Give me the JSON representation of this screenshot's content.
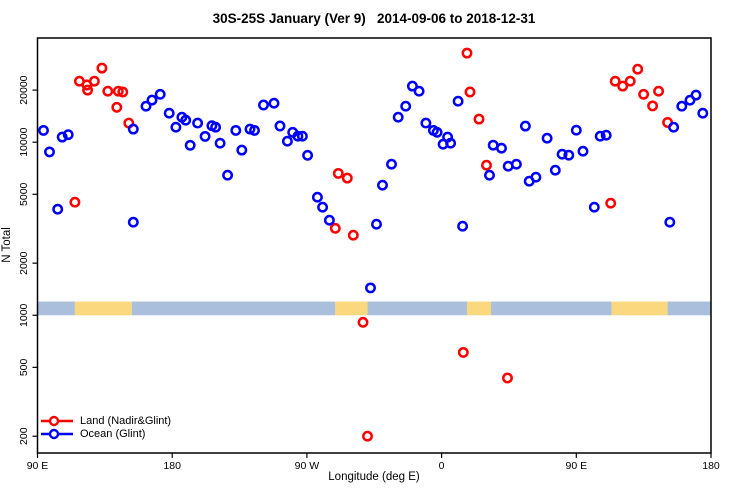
{
  "title": "30S-25S January (Ver 9)   2014-09-06 to 2018-12-31",
  "chart_data": {
    "type": "scatter",
    "title": "30S-25S January (Ver 9)   2014-09-06 to 2018-12-31",
    "xlabel": "Longitude (deg E)",
    "ylabel": "N Total",
    "grid": false,
    "legend_position": "bottom-left",
    "x_axis": {
      "range": [
        90,
        540
      ],
      "ticks": [
        {
          "value": 90,
          "label": "90 E"
        },
        {
          "value": 180,
          "label": "180"
        },
        {
          "value": 270,
          "label": "90 W"
        },
        {
          "value": 360,
          "label": "0"
        },
        {
          "value": 450,
          "label": "90 E"
        },
        {
          "value": 540,
          "label": "180"
        }
      ]
    },
    "y_axis": {
      "scale": "log",
      "range": [
        160,
        40000
      ],
      "ticks": [
        200,
        500,
        1000,
        2000,
        5000,
        10000,
        20000
      ]
    },
    "legend": [
      {
        "label": "Land (Nadir&Glint)",
        "color": "#ff0000"
      },
      {
        "label": "Ocean (Glint)",
        "color": "#0000ff"
      }
    ],
    "surface_band": {
      "y_from": 1000,
      "y_to": 1200,
      "ocean_color": "#a9bfdb",
      "land_color": "#fbd87e",
      "segments": [
        {
          "from": 90,
          "to": 115,
          "type": "ocean"
        },
        {
          "from": 115,
          "to": 153,
          "type": "land"
        },
        {
          "from": 153,
          "to": 289,
          "type": "ocean"
        },
        {
          "from": 289,
          "to": 310.5,
          "type": "land"
        },
        {
          "from": 310.5,
          "to": 377,
          "type": "ocean"
        },
        {
          "from": 377,
          "to": 393,
          "type": "land"
        },
        {
          "from": 393,
          "to": 473.5,
          "type": "ocean"
        },
        {
          "from": 473.5,
          "to": 511,
          "type": "land"
        },
        {
          "from": 511,
          "to": 540,
          "type": "ocean"
        }
      ]
    },
    "series": [
      {
        "name": "Land (Nadir&Glint)",
        "color": "#ff0000",
        "points": [
          [
            133,
            26800
          ],
          [
            118,
            22500
          ],
          [
            123,
            21400
          ],
          [
            128,
            22500
          ],
          [
            123.5,
            20000
          ],
          [
            137,
            19700
          ],
          [
            144,
            19700
          ],
          [
            147,
            19500
          ],
          [
            143,
            15900
          ],
          [
            151,
            12900
          ],
          [
            115,
            4500
          ],
          [
            291,
            6600
          ],
          [
            297,
            6200
          ],
          [
            289,
            3180
          ],
          [
            301,
            2900
          ],
          [
            307.5,
            910
          ],
          [
            310.5,
            200
          ],
          [
            374.5,
            610
          ],
          [
            404,
            434
          ],
          [
            377,
            32700
          ],
          [
            379,
            19500
          ],
          [
            385,
            13600
          ],
          [
            390,
            7360
          ],
          [
            473,
            4440
          ],
          [
            476,
            22500
          ],
          [
            481,
            21100
          ],
          [
            486,
            22500
          ],
          [
            491,
            26400
          ],
          [
            495,
            18900
          ],
          [
            501,
            16200
          ],
          [
            505,
            19700
          ],
          [
            511,
            13000
          ]
        ]
      },
      {
        "name": "Ocean (Glint)",
        "color": "#0000ff",
        "points": [
          [
            94,
            11700
          ],
          [
            98,
            8790
          ],
          [
            106.5,
            10700
          ],
          [
            110.5,
            11050
          ],
          [
            103.5,
            4100
          ],
          [
            154,
            3450
          ],
          [
            154,
            11900
          ],
          [
            162.5,
            16150
          ],
          [
            166.5,
            17500
          ],
          [
            172,
            18900
          ],
          [
            178,
            14700
          ],
          [
            182.5,
            12200
          ],
          [
            186.5,
            13950
          ],
          [
            189,
            13400
          ],
          [
            192,
            9600
          ],
          [
            197,
            12900
          ],
          [
            202,
            10800
          ],
          [
            206.5,
            12450
          ],
          [
            209,
            12200
          ],
          [
            212,
            9870
          ],
          [
            217,
            6450
          ],
          [
            222.5,
            11700
          ],
          [
            226.5,
            9000
          ],
          [
            232,
            11900
          ],
          [
            235,
            11700
          ],
          [
            241,
            16400
          ],
          [
            248,
            16800
          ],
          [
            252,
            12400
          ],
          [
            257,
            10130
          ],
          [
            260.5,
            11400
          ],
          [
            264,
            10830
          ],
          [
            267,
            10830
          ],
          [
            270.5,
            8400
          ],
          [
            277,
            4810
          ],
          [
            280.5,
            4210
          ],
          [
            285,
            3540
          ],
          [
            312.5,
            1440
          ],
          [
            316.5,
            3360
          ],
          [
            320.5,
            5640
          ],
          [
            326.5,
            7460
          ],
          [
            331,
            13950
          ],
          [
            336,
            16150
          ],
          [
            340.5,
            21100
          ],
          [
            345,
            19700
          ],
          [
            349.5,
            12900
          ],
          [
            354.5,
            11700
          ],
          [
            357,
            11400
          ],
          [
            361,
            9740
          ],
          [
            364,
            10700
          ],
          [
            366,
            9870
          ],
          [
            371,
            17260
          ],
          [
            374,
            3270
          ],
          [
            392,
            6450
          ],
          [
            394.5,
            9610
          ],
          [
            400,
            9230
          ],
          [
            404.5,
            7270
          ],
          [
            410,
            7460
          ],
          [
            416,
            12380
          ],
          [
            418.5,
            5950
          ],
          [
            423,
            6280
          ],
          [
            430.5,
            10550
          ],
          [
            436,
            6890
          ],
          [
            440.5,
            8520
          ],
          [
            445,
            8410
          ],
          [
            450,
            11730
          ],
          [
            454.5,
            8870
          ],
          [
            462,
            4210
          ],
          [
            466,
            10830
          ],
          [
            470,
            10970
          ],
          [
            512.5,
            3450
          ],
          [
            515,
            12210
          ],
          [
            520.5,
            16150
          ],
          [
            526,
            17490
          ],
          [
            530,
            18720
          ],
          [
            534.5,
            14710
          ]
        ]
      }
    ]
  }
}
